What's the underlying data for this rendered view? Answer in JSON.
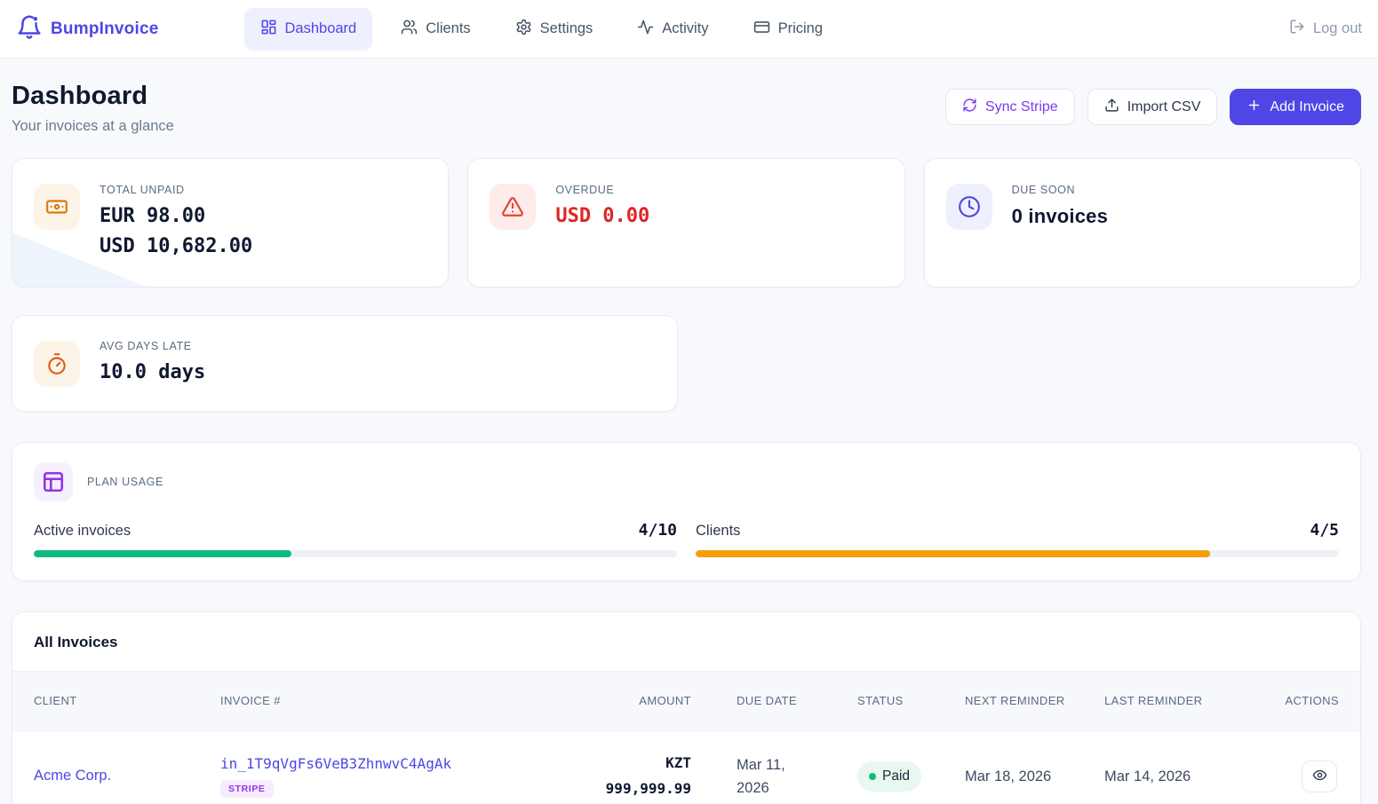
{
  "nav": {
    "brand": "BumpInvoice",
    "items": [
      {
        "label": "Dashboard",
        "active": true
      },
      {
        "label": "Clients",
        "active": false
      },
      {
        "label": "Settings",
        "active": false
      },
      {
        "label": "Activity",
        "active": false
      },
      {
        "label": "Pricing",
        "active": false
      }
    ],
    "logout_label": "Log out"
  },
  "header": {
    "title": "Dashboard",
    "subtitle": "Your invoices at a glance",
    "buttons": {
      "sync": "Sync Stripe",
      "import": "Import CSV",
      "add": "Add Invoice"
    }
  },
  "stats": [
    {
      "label": "TOTAL UNPAID",
      "line1": "EUR 98.00",
      "line2": "USD 10,682.00"
    },
    {
      "label": "OVERDUE",
      "line1": "USD 0.00"
    },
    {
      "label": "DUE SOON",
      "line1": "0 invoices"
    },
    {
      "label": "AVG DAYS LATE",
      "line1": "10.0 days"
    }
  ],
  "plan_usage": {
    "label": "PLAN USAGE",
    "meters": [
      {
        "name": "Active invoices",
        "value": "4/10",
        "percent": 40,
        "color": "#10b981"
      },
      {
        "name": "Clients",
        "value": "4/5",
        "percent": 80,
        "color": "#f59e0b"
      }
    ]
  },
  "invoices": {
    "title": "All Invoices",
    "columns": [
      "CLIENT",
      "INVOICE #",
      "AMOUNT",
      "DUE DATE",
      "STATUS",
      "NEXT REMINDER",
      "LAST REMINDER",
      "ACTIONS"
    ],
    "rows": [
      {
        "client": "Acme Corp.",
        "invoice_id": "in_1T9qVgFs6VeB3ZhnwvC4AgAk",
        "source": "STRIPE",
        "amount": "KZT 999,999.99",
        "due_date": "Mar 11, 2026",
        "status": "Paid",
        "next_reminder": "Mar 18, 2026",
        "last_reminder": "Mar 14, 2026"
      }
    ]
  },
  "colors": {
    "accent": "#4f46e5",
    "sync_purple": "#7c3aed",
    "success": "#10b981",
    "warning": "#f59e0b",
    "danger": "#dc2626",
    "stripe_purple": "#9333ea",
    "orange_icon": "#d9790f"
  }
}
